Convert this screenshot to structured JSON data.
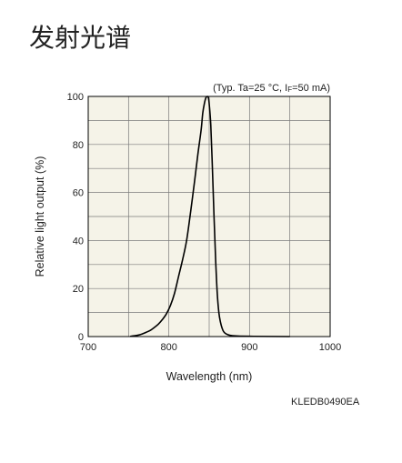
{
  "page": {
    "heading": "发射光谱",
    "code": "KLEDB0490EA"
  },
  "chart_data": {
    "type": "line",
    "title": "",
    "condition": "(Typ. Ta=25 °C, I",
    "condition_sub": "F",
    "condition_tail": "=50 mA)",
    "xlabel": "Wavelength (nm)",
    "ylabel": "Relative light output (%)",
    "xlim": [
      700,
      1000
    ],
    "ylim": [
      0,
      100
    ],
    "xticks": [
      700,
      800,
      900,
      1000
    ],
    "yticks": [
      0,
      20,
      40,
      60,
      80,
      100
    ],
    "grid": true,
    "plot_background": "#f5f3e8",
    "line_color": "#000000",
    "series": [
      {
        "x": [
          752,
          757,
          762,
          767,
          772,
          777,
          782,
          787,
          792,
          797,
          802,
          807,
          812,
          817,
          822,
          827,
          832,
          836,
          840,
          842,
          844,
          846,
          848,
          849,
          850,
          852,
          854,
          856,
          858,
          860,
          862,
          864,
          866,
          868,
          871,
          876,
          886,
          905,
          950
        ],
        "y": [
          0.1,
          0.3,
          0.6,
          1.1,
          1.8,
          2.6,
          3.8,
          5.2,
          7.1,
          9.5,
          13,
          18,
          25,
          32,
          40,
          52,
          65,
          76,
          86,
          93,
          97,
          99.5,
          100,
          99.5,
          97,
          88,
          70,
          50,
          32,
          18,
          10,
          6,
          3.5,
          2,
          1.1,
          0.5,
          0.2,
          0.1,
          0
        ]
      }
    ]
  }
}
